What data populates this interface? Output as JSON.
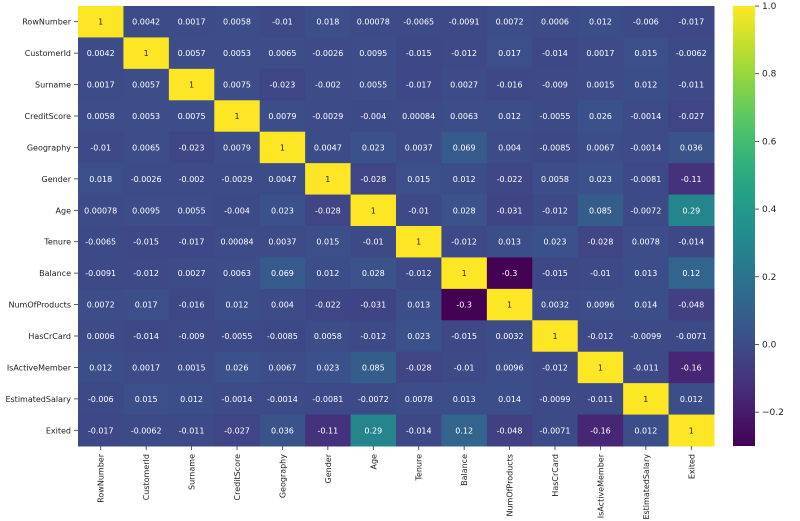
{
  "chart_data": {
    "type": "heatmap",
    "labels": [
      "RowNumber",
      "CustomerId",
      "Surname",
      "CreditScore",
      "Geography",
      "Gender",
      "Age",
      "Tenure",
      "Balance",
      "NumOfProducts",
      "HasCrCard",
      "IsActiveMember",
      "EstimatedSalary",
      "Exited"
    ],
    "matrix": [
      [
        "1",
        "0.0042",
        "0.0017",
        "0.0058",
        "-0.01",
        "0.018",
        "0.00078",
        "-0.0065",
        "-0.0091",
        "0.0072",
        "0.0006",
        "0.012",
        "-0.006",
        "-0.017"
      ],
      [
        "0.0042",
        "1",
        "0.0057",
        "0.0053",
        "0.0065",
        "-0.0026",
        "0.0095",
        "-0.015",
        "-0.012",
        "0.017",
        "-0.014",
        "0.0017",
        "0.015",
        "-0.0062"
      ],
      [
        "0.0017",
        "0.0057",
        "1",
        "0.0075",
        "-0.023",
        "-0.002",
        "0.0055",
        "-0.017",
        "0.0027",
        "-0.016",
        "-0.009",
        "0.0015",
        "0.012",
        "-0.011"
      ],
      [
        "0.0058",
        "0.0053",
        "0.0075",
        "1",
        "0.0079",
        "-0.0029",
        "-0.004",
        "0.00084",
        "0.0063",
        "0.012",
        "-0.0055",
        "0.026",
        "-0.0014",
        "-0.027"
      ],
      [
        "-0.01",
        "0.0065",
        "-0.023",
        "0.0079",
        "1",
        "0.0047",
        "0.023",
        "0.0037",
        "0.069",
        "0.004",
        "-0.0085",
        "0.0067",
        "-0.0014",
        "0.036"
      ],
      [
        "0.018",
        "-0.0026",
        "-0.002",
        "-0.0029",
        "0.0047",
        "1",
        "-0.028",
        "0.015",
        "0.012",
        "-0.022",
        "0.0058",
        "0.023",
        "-0.0081",
        "-0.11"
      ],
      [
        "0.00078",
        "0.0095",
        "0.0055",
        "-0.004",
        "0.023",
        "-0.028",
        "1",
        "-0.01",
        "0.028",
        "-0.031",
        "-0.012",
        "0.085",
        "-0.0072",
        "0.29"
      ],
      [
        "-0.0065",
        "-0.015",
        "-0.017",
        "0.00084",
        "0.0037",
        "0.015",
        "-0.01",
        "1",
        "-0.012",
        "0.013",
        "0.023",
        "-0.028",
        "0.0078",
        "-0.014"
      ],
      [
        "-0.0091",
        "-0.012",
        "0.0027",
        "0.0063",
        "0.069",
        "0.012",
        "0.028",
        "-0.012",
        "1",
        "-0.3",
        "-0.015",
        "-0.01",
        "0.013",
        "0.12"
      ],
      [
        "0.0072",
        "0.017",
        "-0.016",
        "0.012",
        "0.004",
        "-0.022",
        "-0.031",
        "0.013",
        "-0.3",
        "1",
        "0.0032",
        "0.0096",
        "0.014",
        "-0.048"
      ],
      [
        "0.0006",
        "-0.014",
        "-0.009",
        "-0.0055",
        "-0.0085",
        "0.0058",
        "-0.012",
        "0.023",
        "-0.015",
        "0.0032",
        "1",
        "-0.012",
        "-0.0099",
        "-0.0071"
      ],
      [
        "0.012",
        "0.0017",
        "0.0015",
        "0.026",
        "0.0067",
        "0.023",
        "0.085",
        "-0.028",
        "-0.01",
        "0.0096",
        "-0.012",
        "1",
        "-0.011",
        "-0.16"
      ],
      [
        "-0.006",
        "0.015",
        "0.012",
        "-0.0014",
        "-0.0014",
        "-0.0081",
        "-0.0072",
        "0.0078",
        "0.013",
        "0.014",
        "-0.0099",
        "-0.011",
        "1",
        "0.012"
      ],
      [
        "-0.017",
        "-0.0062",
        "-0.011",
        "-0.027",
        "0.036",
        "-0.11",
        "0.29",
        "-0.014",
        "0.12",
        "-0.048",
        "-0.0071",
        "-0.16",
        "0.012",
        "1"
      ]
    ],
    "color_range": [
      -0.3,
      1.0
    ],
    "colormap": "viridis",
    "colorbar_ticks": [
      "1.0",
      "0.8",
      "0.6",
      "0.4",
      "0.2",
      "0.0",
      "−0.2"
    ]
  }
}
